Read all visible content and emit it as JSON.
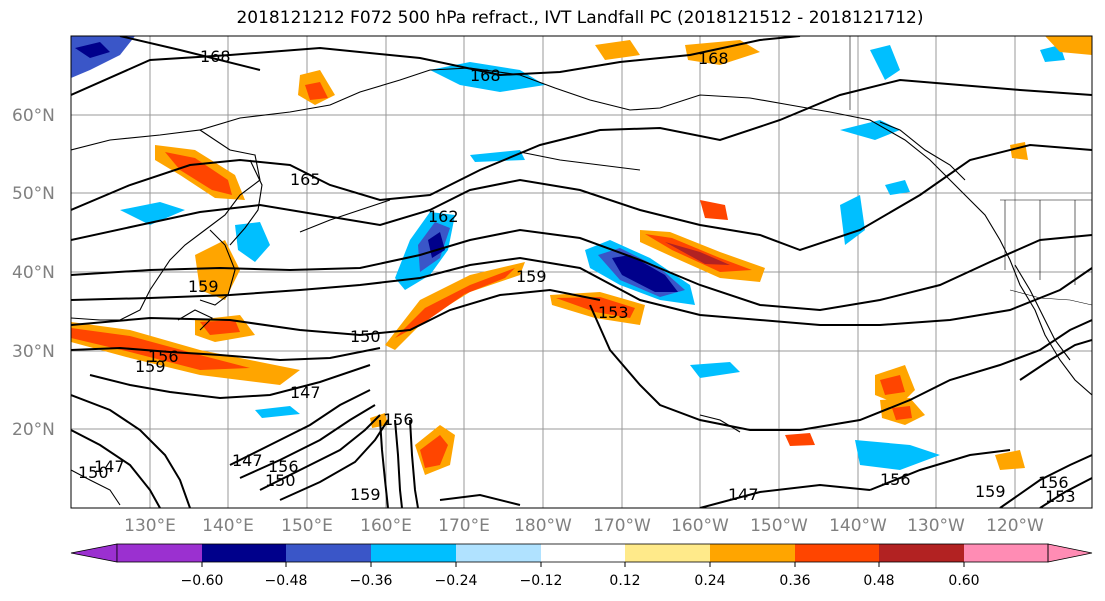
{
  "title": "2018121212 F072 500 hPa refract., IVT Landfall PC (2018121512 - 2018121712)",
  "lat_labels": [
    "60°N",
    "50°N",
    "40°N",
    "30°N",
    "20°N"
  ],
  "lon_labels": [
    "130°E",
    "140°E",
    "150°E",
    "160°E",
    "170°E",
    "180°W",
    "170°W",
    "160°W",
    "150°W",
    "140°W",
    "130°W",
    "120°W"
  ],
  "contour_labels": [
    "168",
    "168",
    "168",
    "165",
    "162",
    "159",
    "159",
    "153",
    "150",
    "156",
    "159",
    "147",
    "147",
    "156",
    "150",
    "156",
    "159",
    "147",
    "156",
    "159",
    "156",
    "153",
    "150",
    "147"
  ],
  "colorbar": {
    "ticks": [
      "−0.60",
      "−0.48",
      "−0.36",
      "−0.24",
      "−0.12",
      "0.12",
      "0.24",
      "0.36",
      "0.48",
      "0.60"
    ],
    "colors": [
      "#9b30d0",
      "#00008b",
      "#3a56c8",
      "#00bfff",
      "#b0e2ff",
      "#ffffff",
      "#ffea8a",
      "#ffa500",
      "#ff4500",
      "#b22222",
      "#ff8cb4"
    ]
  }
}
